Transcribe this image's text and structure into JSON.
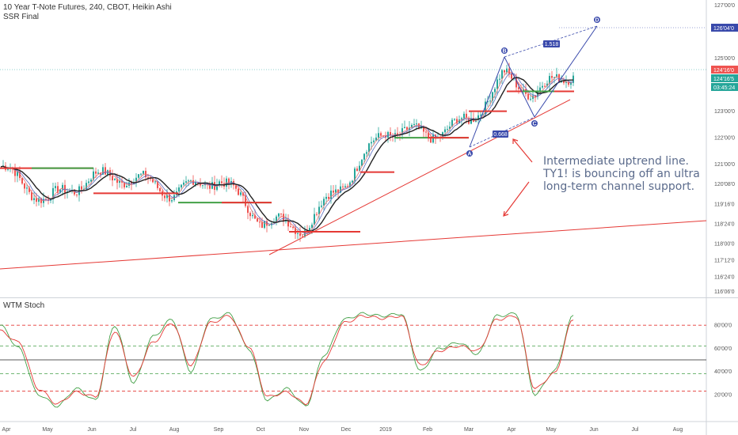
{
  "header": {
    "title": "10 Year T-Note Futures, 240, CBOT, Heikin Ashi",
    "indicator": "SSR Final"
  },
  "lower_panel": {
    "title": "WTM Stoch"
  },
  "annotation": "Intermediate uptrend line. TY1! is bouncing off an ultra long-term channel support.",
  "colors": {
    "trendline": "#e53935",
    "pattern": "#3949ab",
    "price_tag": "#ef5350",
    "ma_tag": "#26a69a",
    "stoch_fast": "#43a047",
    "stoch_slow": "#e53935"
  },
  "chart_data": [
    {
      "type": "candlestick",
      "title": "10 Year T-Note Futures, 240, CBOT, Heikin Ashi",
      "x_ticks": [
        "Apr",
        "May",
        "Jun",
        "Jul",
        "Aug",
        "Sep",
        "Oct",
        "Nov",
        "Dec",
        "2019",
        "Feb",
        "Mar",
        "Apr",
        "May",
        "Jun",
        "Jul",
        "Aug"
      ],
      "y_ticks": [
        "127'00'0",
        "126'04'0",
        "125'00'0",
        "124'16'0",
        "124'16'5",
        "03:45:24",
        "123'00'0",
        "122'00'0",
        "121'00'0",
        "120'08'0",
        "119'16'0",
        "118'24'0",
        "118'00'0",
        "117'12'0",
        "116'24'0",
        "116'06'0"
      ],
      "ylim": [
        116.0,
        127.2
      ],
      "price_path": [
        [
          "Apr",
          120.9
        ],
        [
          "May",
          119.6
        ],
        [
          "Jun",
          120.5
        ],
        [
          "Jul",
          120.5
        ],
        [
          "Aug",
          119.9
        ],
        [
          "Sep",
          120.5
        ],
        [
          "Oct",
          118.9
        ],
        [
          "Nov",
          118.6
        ],
        [
          "Dec",
          120.4
        ],
        [
          "2019",
          122.3
        ],
        [
          "Feb",
          122.1
        ],
        [
          "Mar",
          122.6
        ],
        [
          "Apr",
          124.3
        ],
        [
          "May",
          123.7
        ],
        [
          "May",
          124.5
        ]
      ],
      "price_labels": {
        "last_price": "124'16'0",
        "ma_value": "124'16'5",
        "countdown": "03:45:24",
        "target": "126'04'0"
      },
      "pattern": {
        "points": [
          "A",
          "B",
          "C",
          "D"
        ],
        "ratios": [
          "0.668",
          "1.518"
        ]
      }
    },
    {
      "type": "line",
      "title": "WTM Stoch",
      "y_ticks": [
        "80'00'0",
        "60'00'0",
        "40'00'0",
        "20'00'0"
      ],
      "ylim": [
        0,
        100
      ],
      "levels": [
        80,
        62,
        50,
        38,
        23
      ],
      "series": [
        {
          "values": [
            80,
            60,
            20,
            10,
            25,
            15,
            80,
            30,
            70,
            85,
            40,
            85,
            90,
            60,
            15,
            25,
            10,
            55,
            85,
            90,
            88,
            90,
            40,
            60,
            65,
            55,
            88,
            90,
            20,
            40,
            88
          ]
        },
        {
          "values": [
            75,
            65,
            25,
            12,
            22,
            18,
            75,
            35,
            65,
            82,
            45,
            82,
            88,
            62,
            18,
            22,
            12,
            50,
            82,
            88,
            86,
            88,
            45,
            58,
            62,
            58,
            85,
            88,
            25,
            38,
            85
          ]
        }
      ]
    }
  ]
}
